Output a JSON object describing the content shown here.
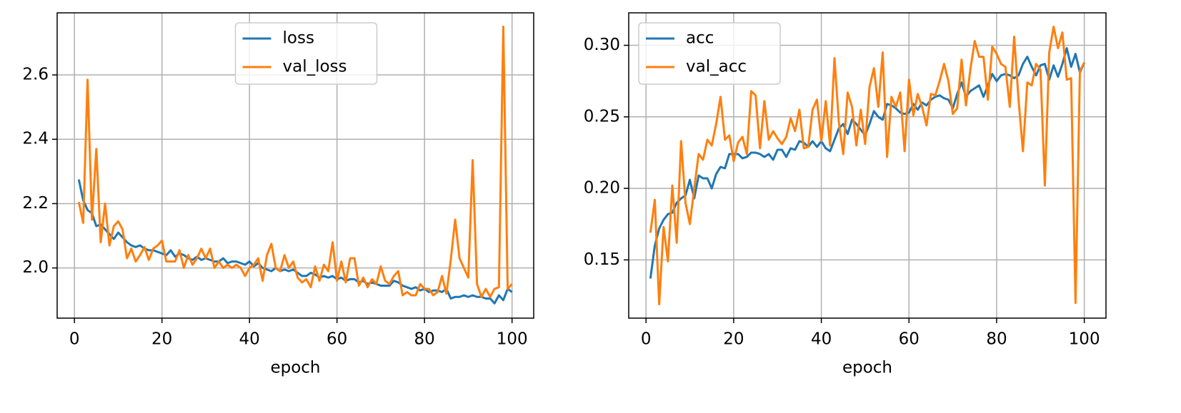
{
  "chart_data": [
    {
      "type": "line",
      "xlabel": "epoch",
      "x": [
        1,
        2,
        3,
        4,
        5,
        6,
        7,
        8,
        9,
        10,
        11,
        12,
        13,
        14,
        15,
        16,
        17,
        18,
        19,
        20,
        21,
        22,
        23,
        24,
        25,
        26,
        27,
        28,
        29,
        30,
        31,
        32,
        33,
        34,
        35,
        36,
        37,
        38,
        39,
        40,
        41,
        42,
        43,
        44,
        45,
        46,
        47,
        48,
        49,
        50,
        51,
        52,
        53,
        54,
        55,
        56,
        57,
        58,
        59,
        60,
        61,
        62,
        63,
        64,
        65,
        66,
        67,
        68,
        69,
        70,
        71,
        72,
        73,
        74,
        75,
        76,
        77,
        78,
        79,
        80,
        81,
        82,
        83,
        84,
        85,
        86,
        87,
        88,
        89,
        90,
        91,
        92,
        93,
        94,
        95,
        96,
        97,
        98,
        99,
        100
      ],
      "series": [
        {
          "name": "loss",
          "color": "#1f77b4",
          "values": [
            2.275,
            2.21,
            2.18,
            2.17,
            2.13,
            2.135,
            2.12,
            2.105,
            2.09,
            2.11,
            2.095,
            2.08,
            2.07,
            2.065,
            2.07,
            2.06,
            2.055,
            2.055,
            2.05,
            2.045,
            2.04,
            2.055,
            2.035,
            2.045,
            2.04,
            2.03,
            2.025,
            2.035,
            2.025,
            2.03,
            2.025,
            2.02,
            2.02,
            2.03,
            2.015,
            2.02,
            2.02,
            2.015,
            2.01,
            2.02,
            2.005,
            2.015,
            2.0,
            1.995,
            1.99,
            2.0,
            1.99,
            1.995,
            1.99,
            1.995,
            1.985,
            1.975,
            1.975,
            1.985,
            1.98,
            1.97,
            1.975,
            1.97,
            1.975,
            1.965,
            1.97,
            1.96,
            1.965,
            1.965,
            1.955,
            1.96,
            1.95,
            1.955,
            1.95,
            1.945,
            1.945,
            1.945,
            1.96,
            1.955,
            1.945,
            1.94,
            1.935,
            1.94,
            1.93,
            1.935,
            1.925,
            1.93,
            1.93,
            1.925,
            1.935,
            1.905,
            1.91,
            1.91,
            1.915,
            1.91,
            1.915,
            1.91,
            1.91,
            1.905,
            1.905,
            1.89,
            1.915,
            1.9,
            1.935,
            1.925
          ]
        },
        {
          "name": "val_loss",
          "color": "#ff7f0e",
          "values": [
            2.205,
            2.14,
            2.585,
            2.15,
            2.37,
            2.08,
            2.2,
            2.07,
            2.13,
            2.145,
            2.12,
            2.03,
            2.06,
            2.02,
            2.04,
            2.065,
            2.025,
            2.06,
            2.07,
            2.085,
            2.02,
            2.02,
            2.02,
            2.055,
            2.0,
            2.04,
            2.01,
            2.03,
            2.06,
            2.03,
            2.06,
            2.0,
            2.02,
            2.0,
            2.01,
            2.0,
            2.01,
            2.0,
            1.975,
            2.0,
            2.01,
            2.03,
            1.96,
            2.04,
            2.075,
            2.0,
            1.99,
            2.04,
            2.0,
            2.02,
            1.97,
            1.955,
            1.965,
            1.94,
            2.005,
            1.96,
            2.01,
            1.99,
            2.08,
            1.96,
            2.02,
            1.955,
            2.03,
            2.03,
            1.945,
            1.97,
            1.94,
            1.965,
            1.95,
            2.005,
            1.96,
            1.95,
            1.975,
            1.99,
            1.915,
            1.925,
            1.915,
            1.915,
            1.95,
            1.935,
            1.935,
            1.915,
            1.925,
            1.975,
            1.92,
            2.025,
            2.15,
            2.03,
            2.0,
            1.97,
            2.335,
            1.95,
            1.91,
            1.935,
            1.91,
            1.935,
            1.94,
            2.75,
            1.935,
            1.95
          ]
        }
      ],
      "xlim": [
        -3.95,
        104.95
      ],
      "ylim": [
        1.844,
        2.793
      ],
      "xticks": [
        0,
        20,
        40,
        60,
        80,
        100
      ],
      "yticks": [
        {
          "value": 2.0,
          "label": "2.0"
        },
        2.2,
        2.4,
        2.6
      ],
      "grid": true,
      "legend": "upper center"
    },
    {
      "type": "line",
      "xlabel": "epoch",
      "x": [
        1,
        2,
        3,
        4,
        5,
        6,
        7,
        8,
        9,
        10,
        11,
        12,
        13,
        14,
        15,
        16,
        17,
        18,
        19,
        20,
        21,
        22,
        23,
        24,
        25,
        26,
        27,
        28,
        29,
        30,
        31,
        32,
        33,
        34,
        35,
        36,
        37,
        38,
        39,
        40,
        41,
        42,
        43,
        44,
        45,
        46,
        47,
        48,
        49,
        50,
        51,
        52,
        53,
        54,
        55,
        56,
        57,
        58,
        59,
        60,
        61,
        62,
        63,
        64,
        65,
        66,
        67,
        68,
        69,
        70,
        71,
        72,
        73,
        74,
        75,
        76,
        77,
        78,
        79,
        80,
        81,
        82,
        83,
        84,
        85,
        86,
        87,
        88,
        89,
        90,
        91,
        92,
        93,
        94,
        95,
        96,
        97,
        98,
        99,
        100
      ],
      "series": [
        {
          "name": "acc",
          "color": "#1f77b4",
          "values": [
            0.137,
            0.16,
            0.172,
            0.178,
            0.182,
            0.183,
            0.19,
            0.193,
            0.195,
            0.206,
            0.193,
            0.209,
            0.207,
            0.207,
            0.2,
            0.21,
            0.215,
            0.214,
            0.224,
            0.224,
            0.224,
            0.221,
            0.222,
            0.225,
            0.225,
            0.224,
            0.222,
            0.224,
            0.22,
            0.227,
            0.227,
            0.222,
            0.228,
            0.227,
            0.233,
            0.232,
            0.229,
            0.233,
            0.229,
            0.233,
            0.228,
            0.226,
            0.234,
            0.242,
            0.245,
            0.238,
            0.248,
            0.245,
            0.241,
            0.237,
            0.245,
            0.254,
            0.25,
            0.248,
            0.259,
            0.258,
            0.256,
            0.253,
            0.252,
            0.253,
            0.259,
            0.255,
            0.26,
            0.258,
            0.262,
            0.264,
            0.265,
            0.263,
            0.262,
            0.256,
            0.266,
            0.274,
            0.264,
            0.268,
            0.27,
            0.272,
            0.264,
            0.272,
            0.28,
            0.275,
            0.279,
            0.28,
            0.279,
            0.277,
            0.279,
            0.287,
            0.292,
            0.285,
            0.279,
            0.286,
            0.287,
            0.276,
            0.286,
            0.278,
            0.287,
            0.298,
            0.285,
            0.294,
            0.281,
            0.288
          ]
        },
        {
          "name": "val_acc",
          "color": "#ff7f0e",
          "values": [
            0.169,
            0.192,
            0.119,
            0.173,
            0.149,
            0.202,
            0.162,
            0.233,
            0.19,
            0.175,
            0.2,
            0.224,
            0.22,
            0.234,
            0.23,
            0.245,
            0.264,
            0.234,
            0.237,
            0.219,
            0.232,
            0.236,
            0.224,
            0.268,
            0.265,
            0.228,
            0.261,
            0.234,
            0.24,
            0.235,
            0.231,
            0.236,
            0.249,
            0.24,
            0.255,
            0.228,
            0.229,
            0.255,
            0.262,
            0.233,
            0.261,
            0.23,
            0.291,
            0.246,
            0.224,
            0.267,
            0.257,
            0.23,
            0.255,
            0.231,
            0.271,
            0.284,
            0.257,
            0.295,
            0.222,
            0.264,
            0.257,
            0.267,
            0.226,
            0.276,
            0.251,
            0.266,
            0.257,
            0.244,
            0.266,
            0.265,
            0.275,
            0.287,
            0.275,
            0.252,
            0.256,
            0.29,
            0.258,
            0.283,
            0.303,
            0.292,
            0.292,
            0.262,
            0.299,
            0.294,
            0.287,
            0.285,
            0.257,
            0.306,
            0.262,
            0.226,
            0.274,
            0.272,
            0.287,
            0.283,
            0.202,
            0.295,
            0.313,
            0.298,
            0.309,
            0.276,
            0.277,
            0.12,
            0.282,
            0.288
          ]
        }
      ],
      "xlim": [
        -3.95,
        104.95
      ],
      "ylim": [
        0.1093,
        0.3227
      ],
      "xticks": [
        0,
        20,
        40,
        60,
        80,
        100
      ],
      "yticks": [
        0.15,
        {
          "value": 0.2,
          "label": "0.20"
        },
        0.25,
        {
          "value": 0.3,
          "label": "0.30"
        }
      ],
      "grid": true,
      "legend": "upper left"
    }
  ]
}
